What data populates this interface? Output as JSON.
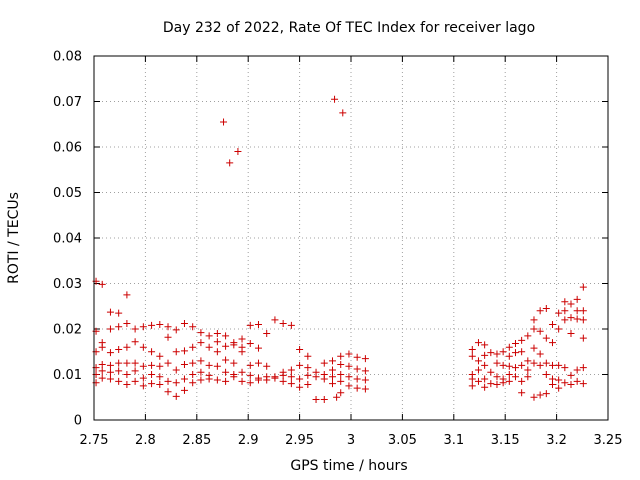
{
  "chart_data": {
    "type": "scatter",
    "title": "Day 232 of 2022, Rate Of TEC Index for receiver lago",
    "xlabel": "GPS time / hours",
    "ylabel": "ROTI / TECUs",
    "xlim": [
      2.75,
      3.25
    ],
    "ylim": [
      0,
      0.08
    ],
    "xticks": [
      "2.75",
      "2.8",
      "2.85",
      "2.9",
      "2.95",
      "3",
      "3.05",
      "3.1",
      "3.15",
      "3.2",
      "3.25"
    ],
    "yticks": [
      "0",
      "0.01",
      "0.02",
      "0.03",
      "0.04",
      "0.05",
      "0.06",
      "0.07",
      "0.08"
    ],
    "grid": true,
    "marker": "+",
    "color": "#cc0000",
    "series": [
      {
        "points": [
          [
            2.752,
            0.0305
          ],
          [
            2.758,
            0.0298
          ],
          [
            2.766,
            0.0237
          ],
          [
            2.774,
            0.0235
          ],
          [
            2.782,
            0.0275
          ],
          [
            2.752,
            0.0195
          ],
          [
            2.752,
            0.015
          ],
          [
            2.752,
            0.0115
          ],
          [
            2.752,
            0.01
          ],
          [
            2.752,
            0.0082
          ],
          [
            2.758,
            0.017
          ],
          [
            2.758,
            0.016
          ],
          [
            2.758,
            0.0122
          ],
          [
            2.758,
            0.0108
          ],
          [
            2.758,
            0.0092
          ],
          [
            2.766,
            0.02
          ],
          [
            2.766,
            0.0148
          ],
          [
            2.766,
            0.012
          ],
          [
            2.766,
            0.0105
          ],
          [
            2.766,
            0.009
          ],
          [
            2.774,
            0.0205
          ],
          [
            2.774,
            0.0155
          ],
          [
            2.774,
            0.0125
          ],
          [
            2.774,
            0.0108
          ],
          [
            2.774,
            0.0085
          ],
          [
            2.782,
            0.0212
          ],
          [
            2.782,
            0.016
          ],
          [
            2.782,
            0.0125
          ],
          [
            2.782,
            0.01
          ],
          [
            2.782,
            0.0078
          ],
          [
            2.79,
            0.02
          ],
          [
            2.79,
            0.0172
          ],
          [
            2.79,
            0.0125
          ],
          [
            2.79,
            0.0108
          ],
          [
            2.79,
            0.0085
          ],
          [
            2.798,
            0.0205
          ],
          [
            2.798,
            0.016
          ],
          [
            2.798,
            0.0118
          ],
          [
            2.798,
            0.0092
          ],
          [
            2.798,
            0.0075
          ],
          [
            2.806,
            0.0208
          ],
          [
            2.806,
            0.015
          ],
          [
            2.806,
            0.012
          ],
          [
            2.806,
            0.01
          ],
          [
            2.806,
            0.008
          ],
          [
            2.814,
            0.021
          ],
          [
            2.814,
            0.014
          ],
          [
            2.814,
            0.0118
          ],
          [
            2.814,
            0.0095
          ],
          [
            2.814,
            0.0078
          ],
          [
            2.822,
            0.0205
          ],
          [
            2.822,
            0.0182
          ],
          [
            2.822,
            0.0125
          ],
          [
            2.822,
            0.0085
          ],
          [
            2.822,
            0.0062
          ],
          [
            2.83,
            0.0198
          ],
          [
            2.83,
            0.015
          ],
          [
            2.83,
            0.011
          ],
          [
            2.83,
            0.0082
          ],
          [
            2.83,
            0.0052
          ],
          [
            2.838,
            0.0212
          ],
          [
            2.838,
            0.0152
          ],
          [
            2.838,
            0.0122
          ],
          [
            2.838,
            0.009
          ],
          [
            2.838,
            0.0065
          ],
          [
            2.846,
            0.0205
          ],
          [
            2.846,
            0.016
          ],
          [
            2.846,
            0.0125
          ],
          [
            2.846,
            0.01
          ],
          [
            2.846,
            0.0082
          ],
          [
            2.854,
            0.0192
          ],
          [
            2.854,
            0.017
          ],
          [
            2.854,
            0.013
          ],
          [
            2.854,
            0.0105
          ],
          [
            2.854,
            0.0088
          ],
          [
            2.862,
            0.0185
          ],
          [
            2.862,
            0.016
          ],
          [
            2.862,
            0.012
          ],
          [
            2.862,
            0.0098
          ],
          [
            2.862,
            0.009
          ],
          [
            2.87,
            0.019
          ],
          [
            2.87,
            0.0172
          ],
          [
            2.87,
            0.015
          ],
          [
            2.87,
            0.0118
          ],
          [
            2.87,
            0.0088
          ],
          [
            2.878,
            0.0185
          ],
          [
            2.878,
            0.0162
          ],
          [
            2.878,
            0.0132
          ],
          [
            2.878,
            0.0105
          ],
          [
            2.878,
            0.0085
          ],
          [
            2.886,
            0.017
          ],
          [
            2.886,
            0.0165
          ],
          [
            2.886,
            0.0125
          ],
          [
            2.886,
            0.01
          ],
          [
            2.886,
            0.0095
          ],
          [
            2.894,
            0.0178
          ],
          [
            2.894,
            0.016
          ],
          [
            2.894,
            0.015
          ],
          [
            2.894,
            0.0105
          ],
          [
            2.894,
            0.0085
          ],
          [
            2.902,
            0.0208
          ],
          [
            2.902,
            0.0168
          ],
          [
            2.902,
            0.012
          ],
          [
            2.902,
            0.0098
          ],
          [
            2.902,
            0.0082
          ],
          [
            2.91,
            0.021
          ],
          [
            2.91,
            0.0158
          ],
          [
            2.91,
            0.0125
          ],
          [
            2.91,
            0.0092
          ],
          [
            2.91,
            0.0088
          ],
          [
            2.918,
            0.019
          ],
          [
            2.918,
            0.0118
          ],
          [
            2.918,
            0.0095
          ],
          [
            2.918,
            0.0088
          ],
          [
            2.926,
            0.022
          ],
          [
            2.926,
            0.0095
          ],
          [
            2.926,
            0.0092
          ],
          [
            2.934,
            0.0212
          ],
          [
            2.934,
            0.0105
          ],
          [
            2.934,
            0.0098
          ],
          [
            2.934,
            0.0085
          ],
          [
            2.942,
            0.0208
          ],
          [
            2.942,
            0.011
          ],
          [
            2.942,
            0.0095
          ],
          [
            2.942,
            0.008
          ],
          [
            2.95,
            0.0155
          ],
          [
            2.95,
            0.012
          ],
          [
            2.95,
            0.009
          ],
          [
            2.95,
            0.0072
          ],
          [
            2.958,
            0.014
          ],
          [
            2.958,
            0.0115
          ],
          [
            2.958,
            0.0098
          ],
          [
            2.958,
            0.0078
          ],
          [
            2.966,
            0.0105
          ],
          [
            2.966,
            0.0095
          ],
          [
            2.966,
            0.0045
          ],
          [
            2.974,
            0.0125
          ],
          [
            2.974,
            0.01
          ],
          [
            2.974,
            0.009
          ],
          [
            2.974,
            0.0045
          ],
          [
            2.982,
            0.013
          ],
          [
            2.982,
            0.011
          ],
          [
            2.982,
            0.0095
          ],
          [
            2.982,
            0.008
          ],
          [
            2.99,
            0.014
          ],
          [
            2.99,
            0.0122
          ],
          [
            2.99,
            0.01
          ],
          [
            2.99,
            0.0085
          ],
          [
            2.99,
            0.006
          ],
          [
            2.998,
            0.0145
          ],
          [
            2.998,
            0.0118
          ],
          [
            2.998,
            0.0095
          ],
          [
            2.998,
            0.0075
          ],
          [
            3.006,
            0.0138
          ],
          [
            3.006,
            0.0112
          ],
          [
            3.006,
            0.009
          ],
          [
            3.006,
            0.007
          ],
          [
            3.014,
            0.0135
          ],
          [
            3.014,
            0.0108
          ],
          [
            3.014,
            0.0088
          ],
          [
            3.014,
            0.0068
          ],
          [
            2.876,
            0.0655
          ],
          [
            2.882,
            0.0565
          ],
          [
            2.89,
            0.059
          ],
          [
            2.984,
            0.0705
          ],
          [
            2.992,
            0.0675
          ],
          [
            2.986,
            0.005
          ],
          [
            3.118,
            0.0155
          ],
          [
            3.118,
            0.014
          ],
          [
            3.118,
            0.01
          ],
          [
            3.118,
            0.009
          ],
          [
            3.118,
            0.0075
          ],
          [
            3.124,
            0.017
          ],
          [
            3.124,
            0.013
          ],
          [
            3.124,
            0.011
          ],
          [
            3.124,
            0.0085
          ],
          [
            3.13,
            0.0165
          ],
          [
            3.13,
            0.0142
          ],
          [
            3.13,
            0.012
          ],
          [
            3.13,
            0.009
          ],
          [
            3.13,
            0.0072
          ],
          [
            3.136,
            0.0148
          ],
          [
            3.136,
            0.0105
          ],
          [
            3.136,
            0.008
          ],
          [
            3.142,
            0.0145
          ],
          [
            3.142,
            0.0125
          ],
          [
            3.142,
            0.0095
          ],
          [
            3.142,
            0.0078
          ],
          [
            3.148,
            0.015
          ],
          [
            3.148,
            0.012
          ],
          [
            3.148,
            0.009
          ],
          [
            3.148,
            0.0082
          ],
          [
            3.154,
            0.016
          ],
          [
            3.154,
            0.014
          ],
          [
            3.154,
            0.0118
          ],
          [
            3.154,
            0.01
          ],
          [
            3.154,
            0.0085
          ],
          [
            3.16,
            0.0168
          ],
          [
            3.16,
            0.0148
          ],
          [
            3.16,
            0.0115
          ],
          [
            3.16,
            0.0095
          ],
          [
            3.166,
            0.0175
          ],
          [
            3.166,
            0.015
          ],
          [
            3.166,
            0.012
          ],
          [
            3.166,
            0.0085
          ],
          [
            3.166,
            0.006
          ],
          [
            3.172,
            0.0185
          ],
          [
            3.172,
            0.013
          ],
          [
            3.172,
            0.011
          ],
          [
            3.172,
            0.0095
          ],
          [
            3.178,
            0.022
          ],
          [
            3.178,
            0.02
          ],
          [
            3.178,
            0.0158
          ],
          [
            3.178,
            0.0125
          ],
          [
            3.178,
            0.005
          ],
          [
            3.184,
            0.024
          ],
          [
            3.184,
            0.0195
          ],
          [
            3.184,
            0.0145
          ],
          [
            3.184,
            0.012
          ],
          [
            3.184,
            0.0055
          ],
          [
            3.19,
            0.0245
          ],
          [
            3.19,
            0.018
          ],
          [
            3.19,
            0.0125
          ],
          [
            3.19,
            0.01
          ],
          [
            3.19,
            0.0058
          ],
          [
            3.196,
            0.021
          ],
          [
            3.196,
            0.017
          ],
          [
            3.196,
            0.012
          ],
          [
            3.196,
            0.009
          ],
          [
            3.196,
            0.0078
          ],
          [
            3.202,
            0.0235
          ],
          [
            3.202,
            0.02
          ],
          [
            3.202,
            0.012
          ],
          [
            3.202,
            0.0088
          ],
          [
            3.202,
            0.007
          ],
          [
            3.208,
            0.026
          ],
          [
            3.208,
            0.024
          ],
          [
            3.208,
            0.022
          ],
          [
            3.208,
            0.0115
          ],
          [
            3.208,
            0.0082
          ],
          [
            3.214,
            0.0255
          ],
          [
            3.214,
            0.0225
          ],
          [
            3.214,
            0.019
          ],
          [
            3.214,
            0.0098
          ],
          [
            3.214,
            0.0078
          ],
          [
            3.22,
            0.0265
          ],
          [
            3.22,
            0.024
          ],
          [
            3.22,
            0.0222
          ],
          [
            3.22,
            0.011
          ],
          [
            3.22,
            0.0085
          ],
          [
            3.226,
            0.0292
          ],
          [
            3.226,
            0.024
          ],
          [
            3.226,
            0.022
          ],
          [
            3.226,
            0.018
          ],
          [
            3.226,
            0.0115
          ],
          [
            3.226,
            0.008
          ]
        ]
      }
    ]
  }
}
